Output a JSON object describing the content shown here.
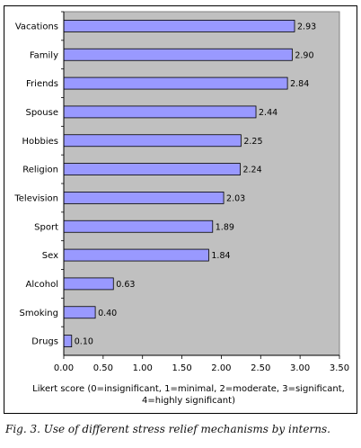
{
  "chart_data": {
    "type": "bar",
    "orientation": "horizontal",
    "categories": [
      "Vacations",
      "Family",
      "Friends",
      "Spouse",
      "Hobbies",
      "Religion",
      "Television",
      "Sport",
      "Sex",
      "Alcohol",
      "Smoking",
      "Drugs"
    ],
    "values": [
      2.93,
      2.9,
      2.84,
      2.44,
      2.25,
      2.24,
      2.03,
      1.89,
      1.84,
      0.63,
      0.4,
      0.1
    ],
    "value_labels": [
      "2.93",
      "2.90",
      "2.84",
      "2.44",
      "2.25",
      "2.24",
      "2.03",
      "1.89",
      "1.84",
      "0.63",
      "0.40",
      "0.10"
    ],
    "xlim": [
      0,
      3.5
    ],
    "xticks": [
      "0.00",
      "0.50",
      "1.00",
      "1.50",
      "2.00",
      "2.50",
      "3.00",
      "3.50"
    ],
    "xlabel": "Likert score (0=insignificant, 1=minimal, 2=moderate, 3=significant, 4=highly significant)",
    "plot_background": "#c0c0c0",
    "bar_color": "#9999ff",
    "grid": false
  },
  "caption": "Fig. 3. Use of different stress relief mechanisms by interns."
}
